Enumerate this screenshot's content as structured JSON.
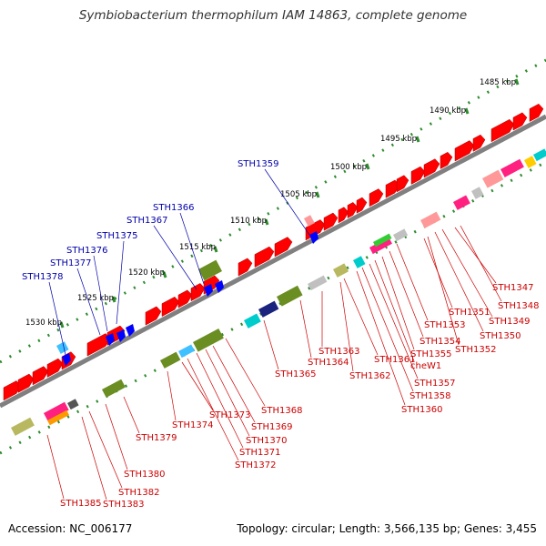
{
  "title": "Symbiobacterium thermophilum IAM 14863, complete genome",
  "footer": {
    "accession": "Accession: NC_006177",
    "summary": "Topology: circular; Length: 3,566,135 bp; Genes: 3,455"
  },
  "colors": {
    "backbone": "#808080",
    "tick": "#2e8b2e",
    "gene_forward": "#ff0000",
    "gene_highlight": "#0000ff",
    "label_red": "#cc0000",
    "label_blue": "#0000aa"
  },
  "scale_labels": [
    "1485 kbp",
    "1490 kbp",
    "1495 kbp",
    "1500 kbp",
    "1505 kbp",
    "1510 kbp",
    "1515 kbp",
    "1520 kbp",
    "1525 kbp",
    "1530 kbp"
  ],
  "labels_below": [
    "STH1347",
    "STH1348",
    "STH1349",
    "STH1350",
    "STH1351",
    "STH1352",
    "STH1353",
    "STH1354",
    "STH1355",
    "cheW1",
    "STH1357",
    "STH1358",
    "STH1360",
    "STH1361",
    "STH1362",
    "STH1363",
    "STH1364",
    "STH1365",
    "STH1368",
    "STH1369",
    "STH1370",
    "STH1371",
    "STH1372",
    "STH1373",
    "STH1374",
    "STH1379",
    "STH1380",
    "STH1382",
    "STH1383",
    "STH1385"
  ],
  "labels_above": [
    "STH1359",
    "STH1366",
    "STH1367",
    "STH1375",
    "STH1376",
    "STH1377",
    "STH1378"
  ]
}
